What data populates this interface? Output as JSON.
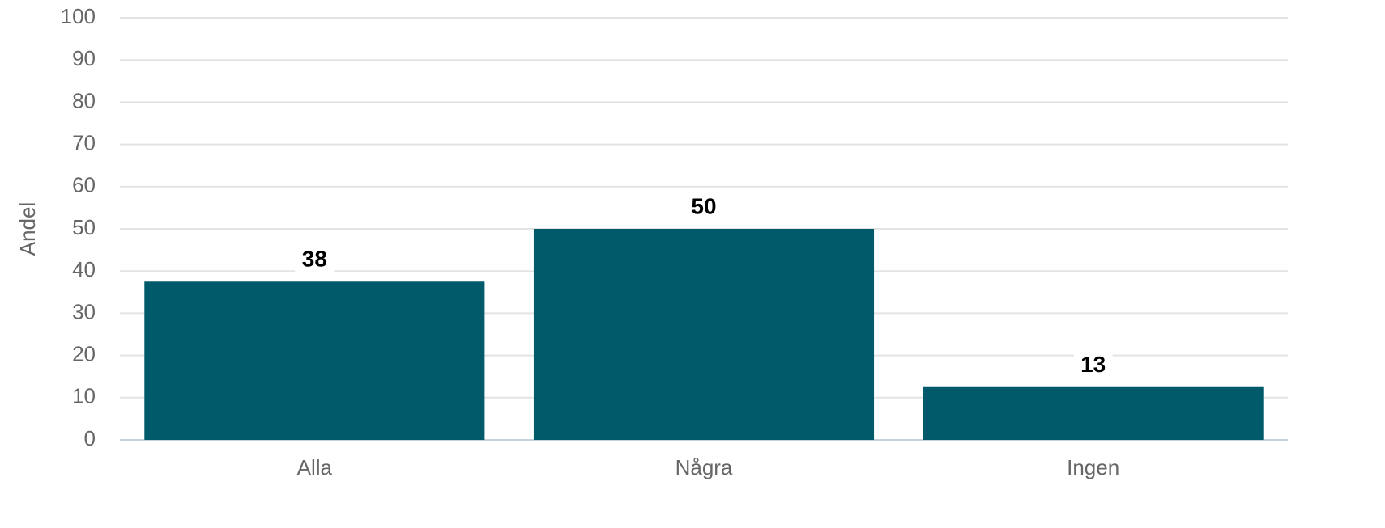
{
  "chart_data": {
    "type": "bar",
    "y_label": "Andel",
    "categories": [
      "Alla",
      "Några",
      "Ingen"
    ],
    "values": [
      37.5,
      50,
      12.5
    ],
    "value_labels": [
      "38",
      "50",
      "13"
    ],
    "color": "#005a6a",
    "ylim": [
      0,
      100
    ],
    "yticks": [
      0,
      10,
      20,
      30,
      40,
      50,
      60,
      70,
      80,
      90,
      100
    ],
    "grid": true
  }
}
